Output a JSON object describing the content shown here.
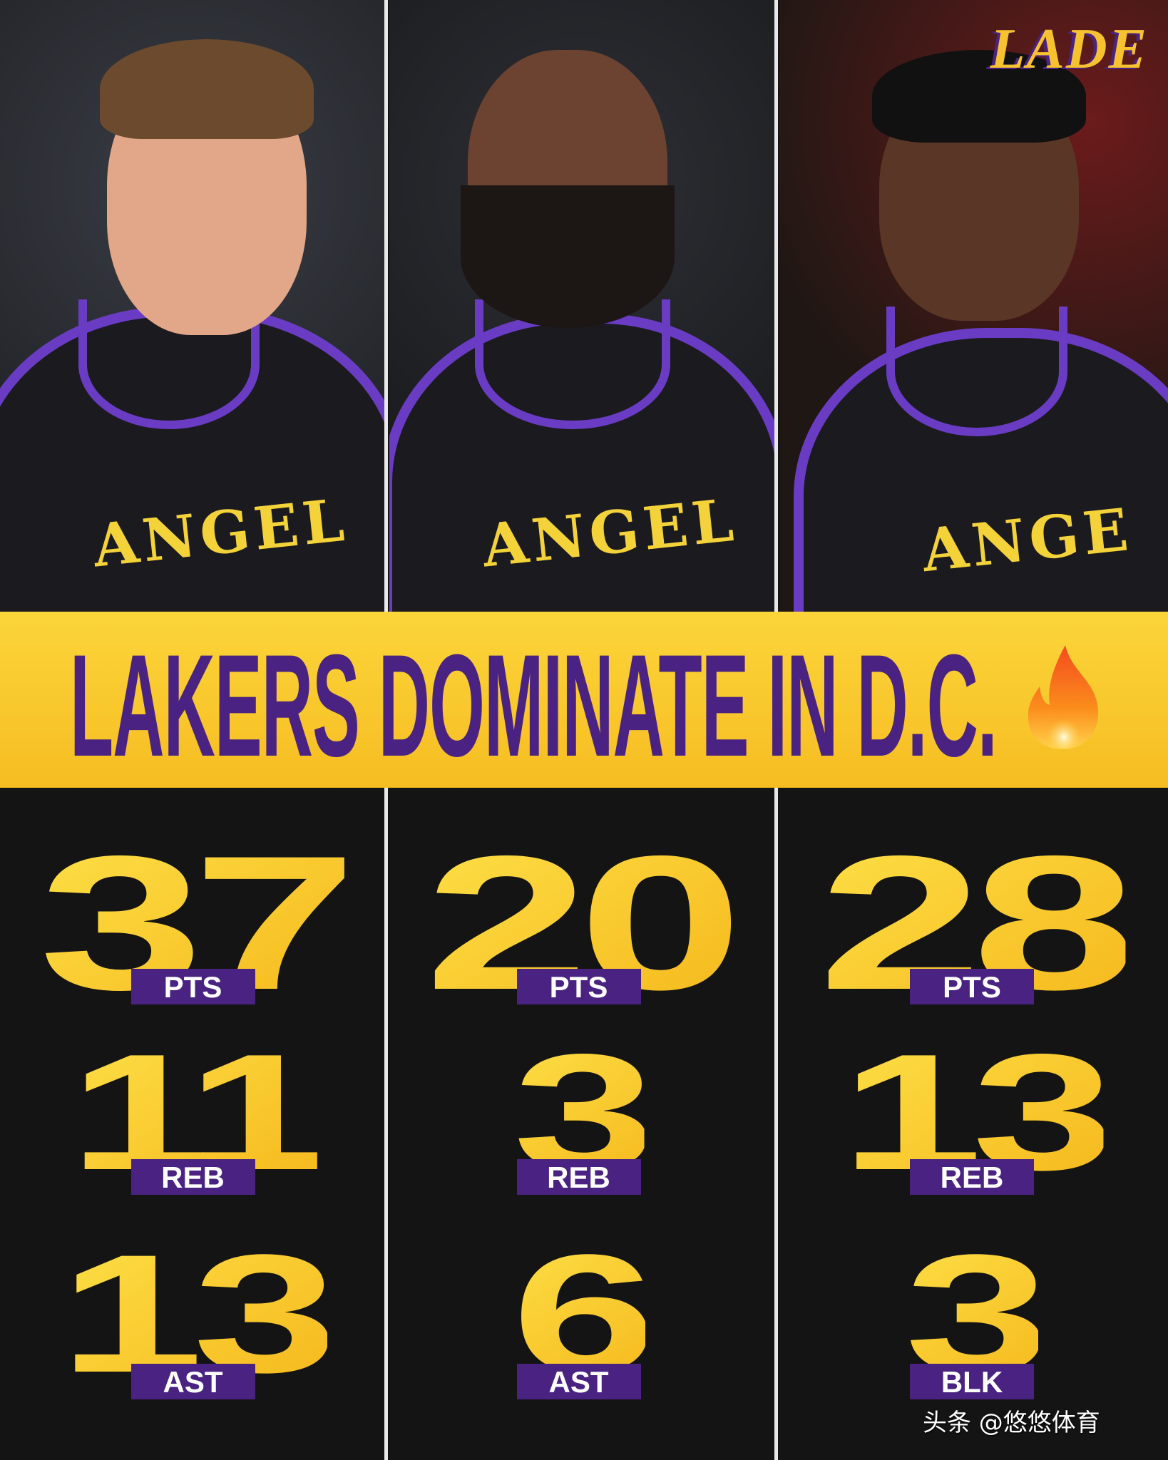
{
  "logo": "LADE",
  "title": "LAKERS DOMINATE IN D.C.",
  "title_icon": "fire-icon",
  "colors": {
    "purple": "#4a2382",
    "gold": "#f7c22f",
    "background": "#141414"
  },
  "players": [
    {
      "jersey_text": "ANGEL",
      "stats": [
        {
          "value": "37",
          "label": "PTS"
        },
        {
          "value": "11",
          "label": "REB"
        },
        {
          "value": "13",
          "label": "AST"
        }
      ]
    },
    {
      "jersey_text": "ANGEL",
      "stats": [
        {
          "value": "20",
          "label": "PTS"
        },
        {
          "value": "3",
          "label": "REB"
        },
        {
          "value": "6",
          "label": "AST"
        }
      ]
    },
    {
      "jersey_text": "ANGE",
      "stats": [
        {
          "value": "28",
          "label": "PTS"
        },
        {
          "value": "13",
          "label": "REB"
        },
        {
          "value": "3",
          "label": "BLK"
        }
      ]
    }
  ],
  "watermark": "头条 @悠悠体育"
}
